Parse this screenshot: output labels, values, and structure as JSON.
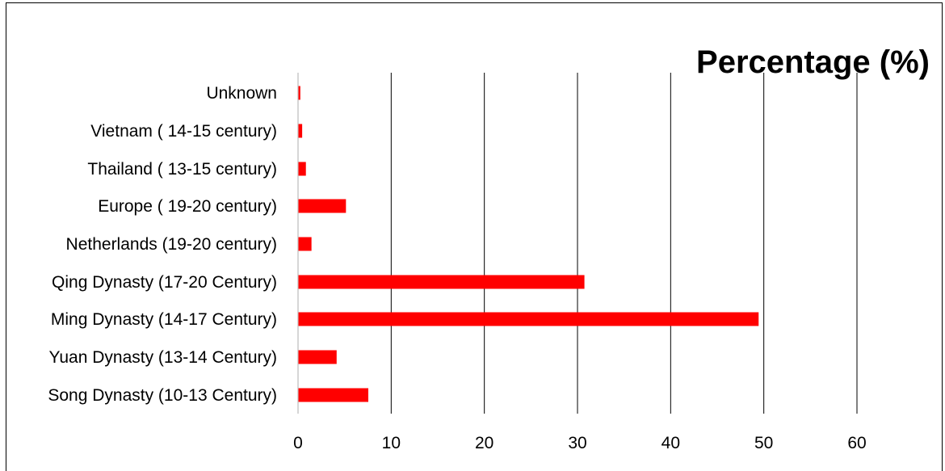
{
  "chart_data": {
    "type": "bar",
    "orientation": "horizontal",
    "title": "Percentage (%)",
    "xlabel": "",
    "ylabel": "",
    "categories": [
      "Song Dynasty (10-13 Century)",
      "Yuan Dynasty (13-14 Century)",
      "Ming Dynasty (14-17 Century)",
      "Qing Dynasty (17-20 Century)",
      "Netherlands  (19-20 century)",
      "Europe ( 19-20 century)",
      "Thailand ( 13-15 century)",
      "Vietnam ( 14-15 century)",
      "Unknown"
    ],
    "values": [
      7.5,
      4.1,
      49.4,
      30.7,
      1.4,
      5.1,
      0.8,
      0.4,
      0.2
    ],
    "xlim": [
      0,
      60
    ],
    "xticks": [
      "0",
      "10",
      "20",
      "30",
      "40",
      "50",
      "60"
    ],
    "grid": "vertical",
    "legend": "none",
    "bar_color": "#ff0000"
  }
}
